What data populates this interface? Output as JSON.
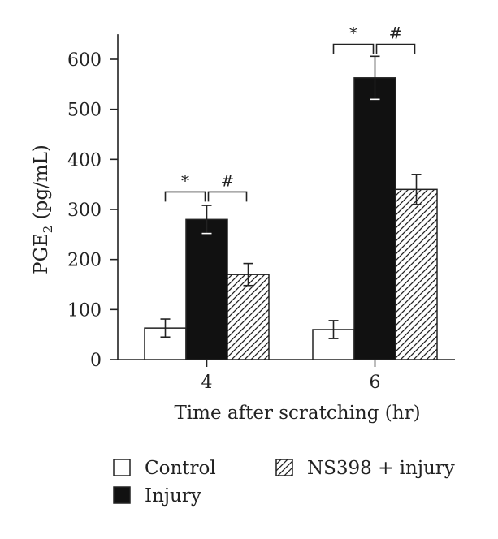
{
  "chart_data": {
    "type": "bar",
    "title": "",
    "xlabel": "Time after scratching (hr)",
    "ylabel": {
      "prefix": "PGE",
      "subscript": "2",
      "suffix": " (pg/mL)"
    },
    "ylim": [
      0,
      650
    ],
    "yticks": [
      0,
      100,
      200,
      300,
      400,
      500,
      600
    ],
    "categories": [
      "4",
      "6"
    ],
    "series": [
      {
        "name": "Control",
        "pattern": "white",
        "values": [
          63,
          60
        ],
        "errors": [
          18,
          18
        ]
      },
      {
        "name": "Injury",
        "pattern": "black",
        "values": [
          280,
          563
        ],
        "errors": [
          28,
          43
        ]
      },
      {
        "name": "NS398 + injury",
        "pattern": "hatched",
        "values": [
          170,
          340
        ],
        "errors": [
          22,
          30
        ]
      }
    ],
    "significance": [
      {
        "category": 0,
        "from": 0,
        "to": 1,
        "label": "*",
        "y": 335
      },
      {
        "category": 0,
        "from": 1,
        "to": 2,
        "label": "#",
        "y": 335
      },
      {
        "category": 1,
        "from": 0,
        "to": 1,
        "label": "*",
        "y": 630
      },
      {
        "category": 1,
        "from": 1,
        "to": 2,
        "label": "#",
        "y": 630
      }
    ],
    "legend_position": "bottom",
    "grid": false,
    "colors": {
      "axis": "#222222",
      "bar_dark": "#111111",
      "bar_light": "#ffffff"
    }
  }
}
